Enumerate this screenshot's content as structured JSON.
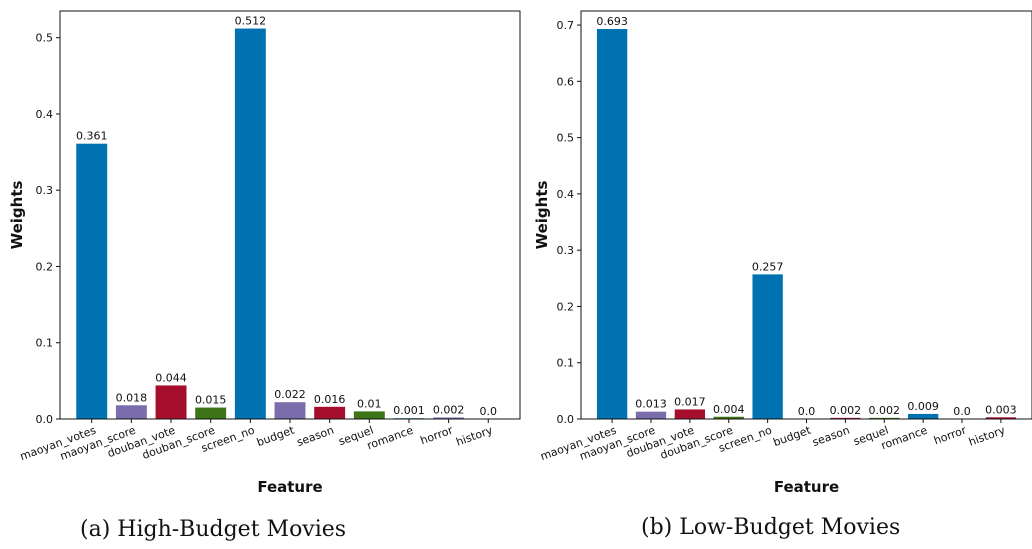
{
  "colors": {
    "blue": "#0072b2",
    "purple": "#7b6cac",
    "red": "#a50e2d",
    "green": "#3e7418"
  },
  "captions": [
    "(a) High-Budget Movies",
    "(b) Low-Budget Movies"
  ],
  "chart_data": [
    {
      "type": "bar",
      "title": "",
      "xlabel": "Feature",
      "ylabel": "Weights",
      "ylim": [
        0,
        0.535
      ],
      "yticks": [
        "0.0",
        "0.1",
        "0.2",
        "0.3",
        "0.4",
        "0.5"
      ],
      "ytick_values": [
        0,
        0.1,
        0.2,
        0.3,
        0.4,
        0.5
      ],
      "categories": [
        "maoyan_votes",
        "maoyan_score",
        "douban_vote",
        "douban_score",
        "screen_no",
        "budget",
        "season",
        "sequel",
        "romance",
        "horror",
        "history"
      ],
      "values": [
        0.361,
        0.018,
        0.044,
        0.015,
        0.512,
        0.022,
        0.016,
        0.01,
        0.001,
        0.002,
        0.0
      ],
      "data_labels": [
        "0.361",
        "0.018",
        "0.044",
        "0.015",
        "0.512",
        "0.022",
        "0.016",
        "0.01",
        "0.001",
        "0.002",
        "0.0"
      ],
      "bar_colors": [
        "blue",
        "purple",
        "red",
        "green",
        "blue",
        "purple",
        "red",
        "green",
        "blue",
        "purple",
        "red"
      ],
      "grid": false,
      "legend": "none"
    },
    {
      "type": "bar",
      "title": "",
      "xlabel": "Feature",
      "ylabel": "Weights",
      "ylim": [
        0,
        0.725
      ],
      "yticks": [
        "0.0",
        "0.1",
        "0.2",
        "0.3",
        "0.4",
        "0.5",
        "0.6",
        "0.7"
      ],
      "ytick_values": [
        0,
        0.1,
        0.2,
        0.3,
        0.4,
        0.5,
        0.6,
        0.7
      ],
      "categories": [
        "maoyan_votes",
        "maoyan_score",
        "douban_vote",
        "douban_score",
        "screen_no",
        "budget",
        "season",
        "sequel",
        "romance",
        "horror",
        "history"
      ],
      "values": [
        0.693,
        0.013,
        0.017,
        0.004,
        0.257,
        0.0,
        0.002,
        0.002,
        0.009,
        0.0,
        0.003
      ],
      "data_labels": [
        "0.693",
        "0.013",
        "0.017",
        "0.004",
        "0.257",
        "0.0",
        "0.002",
        "0.002",
        "0.009",
        "0.0",
        "0.003"
      ],
      "bar_colors": [
        "blue",
        "purple",
        "red",
        "green",
        "blue",
        "purple",
        "red",
        "green",
        "blue",
        "purple",
        "red"
      ],
      "grid": false,
      "legend": "none"
    }
  ]
}
